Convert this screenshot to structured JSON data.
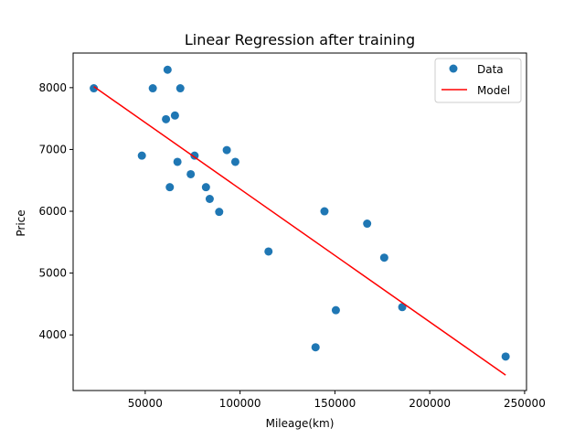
{
  "chart_data": {
    "type": "scatter",
    "title": "Linear Regression after training",
    "xlabel": "Mileage(km)",
    "ylabel": "Price",
    "xlim": [
      12000,
      251000
    ],
    "ylim": [
      3100,
      8560
    ],
    "xticks": [
      50000,
      100000,
      150000,
      200000,
      250000
    ],
    "yticks": [
      4000,
      5000,
      6000,
      7000,
      8000
    ],
    "grid": false,
    "legend_position": "top-right",
    "series": [
      {
        "name": "Data",
        "kind": "scatter",
        "color": "#1f77b4",
        "points": [
          [
            22899,
            7990
          ],
          [
            48235,
            6900
          ],
          [
            54000,
            7990
          ],
          [
            60949,
            7490
          ],
          [
            61789,
            8290
          ],
          [
            62964,
            6390
          ],
          [
            65674,
            7550
          ],
          [
            67000,
            6800
          ],
          [
            68500,
            7990
          ],
          [
            74000,
            6600
          ],
          [
            76025,
            6900
          ],
          [
            82029,
            6390
          ],
          [
            84000,
            6200
          ],
          [
            89000,
            5990
          ],
          [
            93000,
            6990
          ],
          [
            97500,
            6800
          ],
          [
            115000,
            5350
          ],
          [
            139800,
            3800
          ],
          [
            144500,
            6000
          ],
          [
            150500,
            4400
          ],
          [
            167000,
            5800
          ],
          [
            176000,
            5250
          ],
          [
            185500,
            4450
          ],
          [
            240000,
            3650
          ]
        ]
      },
      {
        "name": "Model",
        "kind": "line",
        "color": "#ff0000",
        "points": [
          [
            22899,
            8018
          ],
          [
            240000,
            3350
          ]
        ]
      }
    ]
  }
}
